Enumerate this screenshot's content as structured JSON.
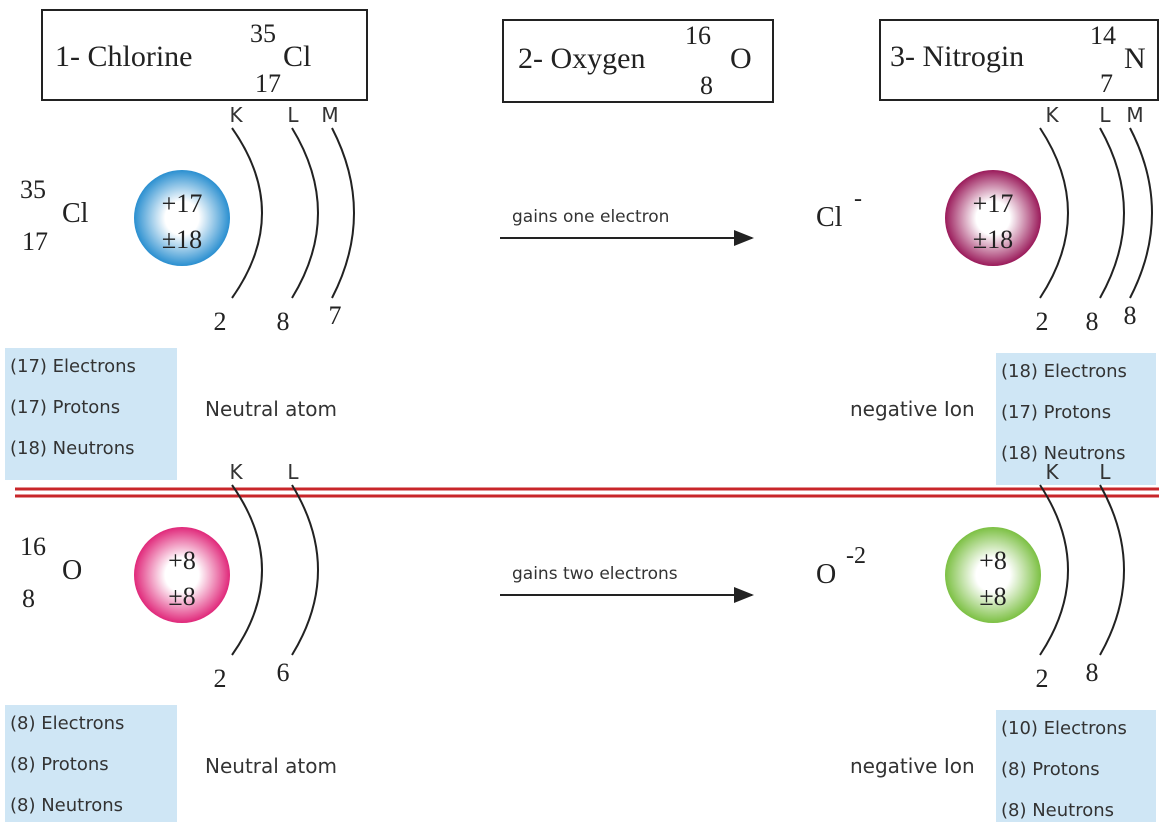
{
  "headers": [
    {
      "label": "1- Chlorine",
      "mass": "35",
      "atomic": "17",
      "symbol": "Cl"
    },
    {
      "label": "2- Oxygen",
      "mass": "16",
      "atomic": "8",
      "symbol": "O"
    },
    {
      "label": "3- Nitrogin",
      "mass": "14",
      "atomic": "7",
      "symbol": "N"
    }
  ],
  "rows": [
    {
      "atom": {
        "mass": "35",
        "atomic": "17",
        "symbol": "Cl",
        "nucleus": [
          "+17",
          "±18"
        ],
        "shells": [
          "K",
          "L",
          "M"
        ],
        "electrons": [
          "2",
          "8",
          "7"
        ],
        "counts": [
          "(17) Electrons",
          "(17) Protons",
          "(18) Neutrons"
        ],
        "state": "Neutral atom"
      },
      "arrow": "gains one electron",
      "ion": {
        "symbol": "Cl",
        "charge": "-",
        "nucleus": [
          "+17",
          "±18"
        ],
        "shells": [
          "K",
          "L",
          "M"
        ],
        "electrons": [
          "2",
          "8",
          "8"
        ],
        "counts": [
          "(18) Electrons",
          "(17) Protons",
          "(18) Neutrons"
        ],
        "state": "negative Ion"
      }
    },
    {
      "atom": {
        "mass": "16",
        "atomic": "8",
        "symbol": "O",
        "nucleus": [
          "+8",
          "±8"
        ],
        "shells": [
          "K",
          "L"
        ],
        "electrons": [
          "2",
          "6"
        ],
        "counts": [
          "(8) Electrons",
          "(8) Protons",
          "(8) Neutrons"
        ],
        "state": "Neutral atom"
      },
      "arrow": "gains two electrons",
      "ion": {
        "symbol": "O",
        "charge": "-2",
        "nucleus": [
          "+8",
          "±8"
        ],
        "shells": [
          "K",
          "L"
        ],
        "electrons": [
          "2",
          "8"
        ],
        "counts": [
          "(10) Electrons",
          "(8) Protons",
          "(8) Neutrons"
        ],
        "state": "negative Ion"
      }
    }
  ]
}
